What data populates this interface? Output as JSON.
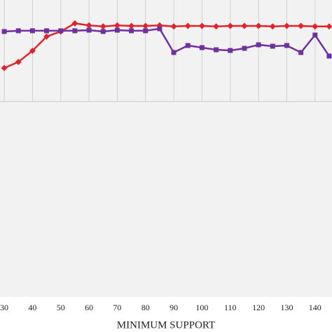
{
  "chart_data": {
    "type": "line",
    "x_label": "MINIMUM SUPPORT",
    "x": [
      30,
      35,
      40,
      45,
      50,
      55,
      60,
      65,
      70,
      75,
      80,
      85,
      90,
      95,
      100,
      105,
      110,
      115,
      120,
      125,
      130,
      135,
      140,
      145
    ],
    "xlim": [
      28.5,
      146
    ],
    "xticks": [
      30,
      40,
      50,
      60,
      70,
      80,
      90,
      100,
      110,
      120,
      130,
      140
    ],
    "ylim": [
      0,
      100
    ],
    "grid": true,
    "series": [
      {
        "color": "#e0242b",
        "marker": "diamond",
        "values": [
          33,
          39,
          50,
          64,
          69,
          77,
          75,
          74,
          75,
          74.5,
          74.5,
          75,
          74,
          74.5,
          74.5,
          74,
          74.5,
          74.5,
          74.5,
          74,
          74.5,
          74.5,
          74,
          74
        ]
      },
      {
        "color": "#7030a0",
        "marker": "square",
        "values": [
          69,
          69.7,
          69.7,
          69.7,
          69.7,
          69.7,
          70.3,
          69,
          70.3,
          69.7,
          69.7,
          71.7,
          48.3,
          55.2,
          53.1,
          51,
          50.3,
          52.4,
          55.9,
          54.5,
          55.2,
          48.3,
          65.5,
          44.8
        ]
      }
    ]
  }
}
